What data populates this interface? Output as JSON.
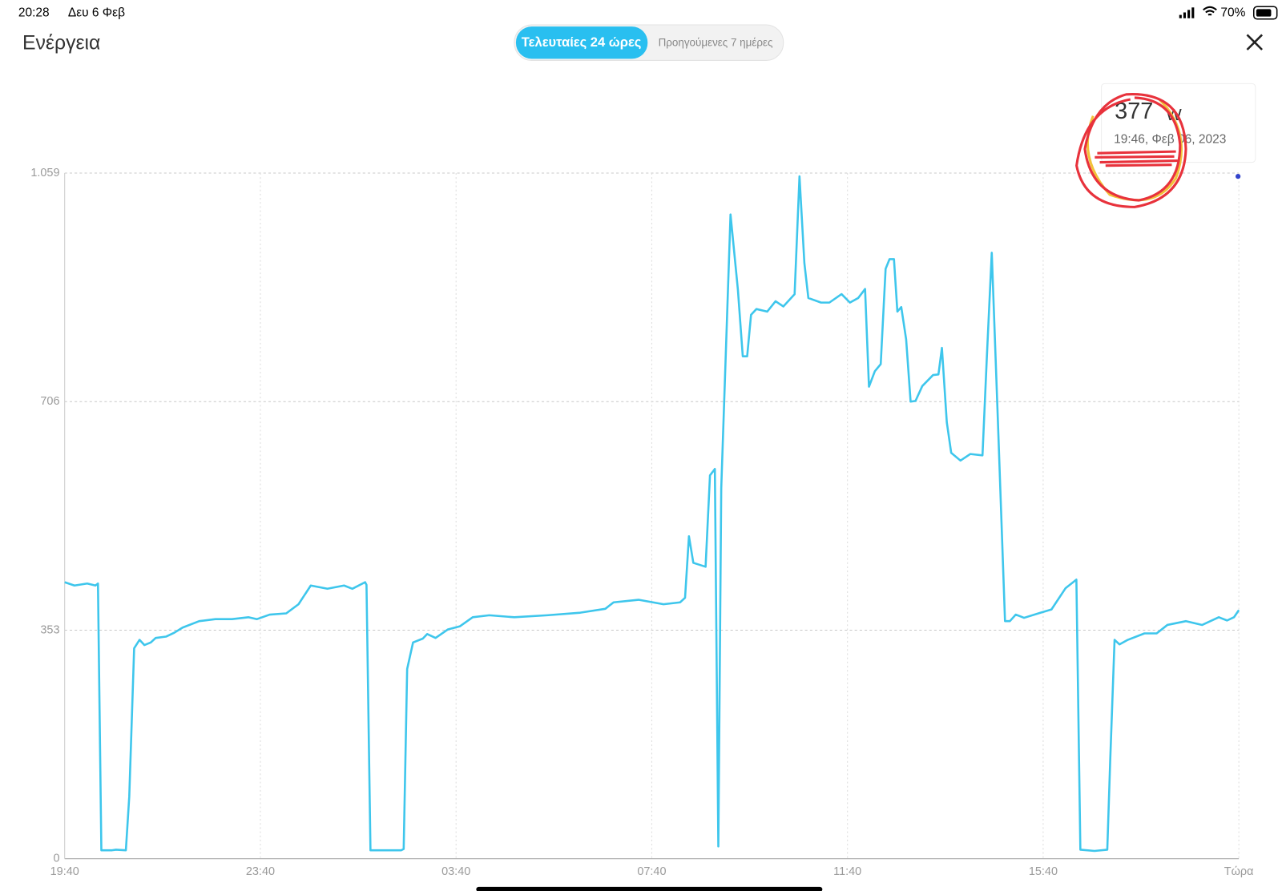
{
  "status_bar": {
    "time": "20:28",
    "date": "Δευ 6 Φεβ",
    "battery": "70%"
  },
  "header": {
    "title": "Ενέργεια",
    "tabs": [
      "Τελευταίες 24 ώρες",
      "Προηγούμενες 7 ημέρες"
    ]
  },
  "tooltip": {
    "value": "377",
    "unit": "W",
    "timestamp": "19:46, Φεβ 06, 2023"
  },
  "chart_data": {
    "type": "line",
    "color": "#3ec6ec",
    "grid": true,
    "xlim": [
      0,
      24
    ],
    "xticks": [
      {
        "value": 0,
        "label": "19:40"
      },
      {
        "value": 4,
        "label": "23:40"
      },
      {
        "value": 8,
        "label": "03:40"
      },
      {
        "value": 12,
        "label": "07:40"
      },
      {
        "value": 16,
        "label": "11:40"
      },
      {
        "value": 20,
        "label": "15:40"
      },
      {
        "value": 24,
        "label": "Τώρα"
      }
    ],
    "ylim": [
      0,
      1059
    ],
    "yticks": [
      0,
      353,
      706,
      {
        "value": 1059,
        "label": "1.059"
      }
    ],
    "x": [
      0,
      0.2,
      0.46,
      0.63,
      0.68,
      0.75,
      0.97,
      1.05,
      1.25,
      1.32,
      1.42,
      1.53,
      1.63,
      1.76,
      1.86,
      2.07,
      2.24,
      2.41,
      2.75,
      3.08,
      3.42,
      3.76,
      3.93,
      4.19,
      4.53,
      4.78,
      5.03,
      5.37,
      5.71,
      5.88,
      6.14,
      6.17,
      6.25,
      6.88,
      6.93,
      7.0,
      7.12,
      7.32,
      7.41,
      7.58,
      7.83,
      8.08,
      8.34,
      8.68,
      9.19,
      9.86,
      10.54,
      11.05,
      11.22,
      11.73,
      12.24,
      12.58,
      12.68,
      12.76,
      12.85,
      13.1,
      13.19,
      13.29,
      13.36,
      13.42,
      13.54,
      13.61,
      13.76,
      13.86,
      13.95,
      14.03,
      14.14,
      14.36,
      14.53,
      14.69,
      14.92,
      15.02,
      15.12,
      15.2,
      15.46,
      15.63,
      15.88,
      16.05,
      16.22,
      16.36,
      16.44,
      16.56,
      16.68,
      16.78,
      16.86,
      16.95,
      17.02,
      17.1,
      17.2,
      17.29,
      17.39,
      17.53,
      17.75,
      17.86,
      17.93,
      18.03,
      18.12,
      18.31,
      18.51,
      18.76,
      18.85,
      18.95,
      19.07,
      19.22,
      19.32,
      19.44,
      19.61,
      19.95,
      20.17,
      20.46,
      20.68,
      20.76,
      21.05,
      21.31,
      21.37,
      21.46,
      21.56,
      21.73,
      22.07,
      22.32,
      22.54,
      22.92,
      23.25,
      23.59,
      23.76,
      23.9,
      24
    ],
    "values": [
      427,
      422,
      425,
      422,
      425,
      13,
      13,
      14,
      13,
      96,
      325,
      338,
      330,
      334,
      341,
      343,
      349,
      357,
      367,
      370,
      370,
      373,
      370,
      377,
      379,
      393,
      422,
      417,
      422,
      417,
      427,
      423,
      13,
      13,
      15,
      293,
      334,
      340,
      347,
      341,
      354,
      359,
      373,
      376,
      373,
      376,
      380,
      386,
      396,
      400,
      393,
      396,
      403,
      498,
      457,
      451,
      592,
      602,
      19,
      572,
      840,
      995,
      879,
      776,
      776,
      840,
      849,
      845,
      861,
      853,
      872,
      1054,
      920,
      866,
      859,
      859,
      872,
      859,
      866,
      880,
      729,
      753,
      764,
      911,
      926,
      926,
      845,
      852,
      802,
      706,
      707,
      730,
      747,
      748,
      789,
      674,
      627,
      615,
      625,
      623,
      776,
      936,
      687,
      367,
      367,
      377,
      372,
      380,
      385,
      418,
      431,
      14,
      12,
      14,
      150,
      338,
      331,
      338,
      348,
      348,
      361,
      367,
      361,
      373,
      368,
      373,
      384
    ]
  }
}
